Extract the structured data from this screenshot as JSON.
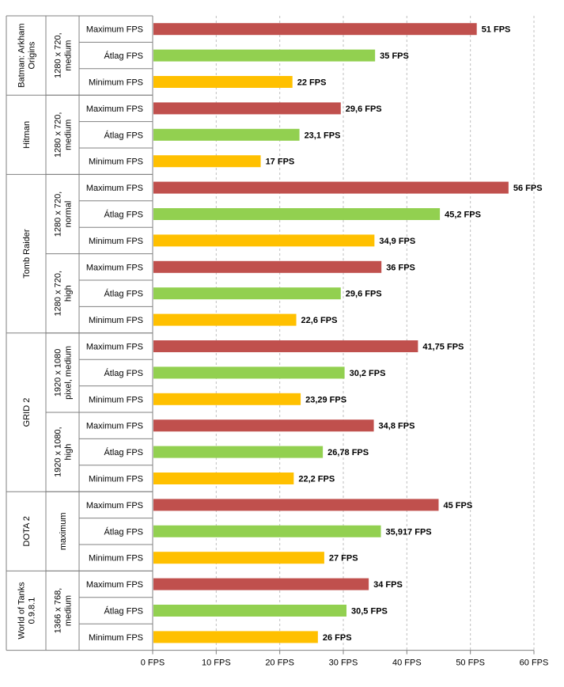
{
  "chart_data": {
    "type": "bar",
    "orientation": "horizontal",
    "title": "",
    "xlabel": "",
    "ylabel": "",
    "xlim": [
      0,
      60
    ],
    "x_ticks": [
      "0 FPS",
      "10 FPS",
      "20 FPS",
      "30 FPS",
      "40 FPS",
      "50 FPS",
      "60 FPS"
    ],
    "grid": "vertical dashed",
    "colors": {
      "Maximum FPS": "#c0504d",
      "Átlag FPS": "#92d050",
      "Minimum FPS": "#ffc000",
      "axis": "#808080",
      "grid": "#bfbfbf"
    },
    "games": [
      {
        "name": "Batman: Arkham Origins",
        "settings": [
          {
            "name": "1280 x 720, medium",
            "bars": [
              {
                "label": "Maximum FPS",
                "value": 51,
                "value_label": "51 FPS"
              },
              {
                "label": "Átlag FPS",
                "value": 35,
                "value_label": "35 FPS"
              },
              {
                "label": "Minimum FPS",
                "value": 22,
                "value_label": "22 FPS"
              }
            ]
          }
        ]
      },
      {
        "name": "Hitman",
        "settings": [
          {
            "name": "1280 x 720, medium",
            "bars": [
              {
                "label": "Maximum FPS",
                "value": 29.6,
                "value_label": "29,6 FPS"
              },
              {
                "label": "Átlag FPS",
                "value": 23.1,
                "value_label": "23,1 FPS"
              },
              {
                "label": "Minimum FPS",
                "value": 17,
                "value_label": "17 FPS"
              }
            ]
          }
        ]
      },
      {
        "name": "Tomb Raider",
        "settings": [
          {
            "name": "1280 x 720, normal",
            "bars": [
              {
                "label": "Maximum FPS",
                "value": 56,
                "value_label": "56 FPS"
              },
              {
                "label": "Átlag FPS",
                "value": 45.2,
                "value_label": "45,2 FPS"
              },
              {
                "label": "Minimum FPS",
                "value": 34.9,
                "value_label": "34,9 FPS"
              }
            ]
          },
          {
            "name": "1280 x 720, high",
            "bars": [
              {
                "label": "Maximum FPS",
                "value": 36,
                "value_label": "36 FPS"
              },
              {
                "label": "Átlag FPS",
                "value": 29.6,
                "value_label": "29,6 FPS"
              },
              {
                "label": "Minimum FPS",
                "value": 22.6,
                "value_label": "22,6 FPS"
              }
            ]
          }
        ]
      },
      {
        "name": "GRID 2",
        "settings": [
          {
            "name": "1920 x 1080 pixel, medium",
            "bars": [
              {
                "label": "Maximum FPS",
                "value": 41.75,
                "value_label": "41,75 FPS"
              },
              {
                "label": "Átlag FPS",
                "value": 30.2,
                "value_label": "30,2 FPS"
              },
              {
                "label": "Minimum FPS",
                "value": 23.29,
                "value_label": "23,29 FPS"
              }
            ]
          },
          {
            "name": "1920 x 1080, high",
            "bars": [
              {
                "label": "Maximum FPS",
                "value": 34.8,
                "value_label": "34,8 FPS"
              },
              {
                "label": "Átlag FPS",
                "value": 26.78,
                "value_label": "26,78 FPS"
              },
              {
                "label": "Minimum FPS",
                "value": 22.2,
                "value_label": "22,2 FPS"
              }
            ]
          }
        ]
      },
      {
        "name": "DOTA 2",
        "settings": [
          {
            "name": "maximum",
            "bars": [
              {
                "label": "Maximum FPS",
                "value": 45,
                "value_label": "45 FPS"
              },
              {
                "label": "Átlag FPS",
                "value": 35.917,
                "value_label": "35,917 FPS"
              },
              {
                "label": "Minimum FPS",
                "value": 27,
                "value_label": "27 FPS"
              }
            ]
          }
        ]
      },
      {
        "name": "World of Tanks 0.9.8.1",
        "settings": [
          {
            "name": "1366 x 768, medium",
            "bars": [
              {
                "label": "Maximum FPS",
                "value": 34,
                "value_label": "34 FPS"
              },
              {
                "label": "Átlag FPS",
                "value": 30.5,
                "value_label": "30,5 FPS"
              },
              {
                "label": "Minimum FPS",
                "value": 26,
                "value_label": "26 FPS"
              }
            ]
          }
        ]
      }
    ]
  }
}
